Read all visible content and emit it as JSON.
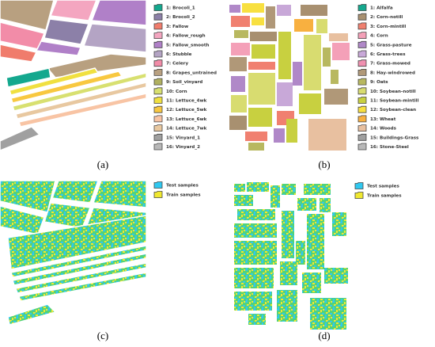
{
  "panels": [
    {
      "label": "(a)",
      "legend": [
        {
          "text": "1: Brocoli_1",
          "color": "#14a88e"
        },
        {
          "text": "2: Brocoli_2",
          "color": "#8c80a8"
        },
        {
          "text": "3: Fallow",
          "color": "#f07c6c"
        },
        {
          "text": "4: Fallow_rough",
          "color": "#f4a6c0"
        },
        {
          "text": "5: Fallow_smooth",
          "color": "#b080c8"
        },
        {
          "text": "6: Stubble",
          "color": "#b4a4c4"
        },
        {
          "text": "7: Celery",
          "color": "#f28ca8"
        },
        {
          "text": "8: Grapes_untrained",
          "color": "#b8a080"
        },
        {
          "text": "9: Soil_vinyard",
          "color": "#b0b060"
        },
        {
          "text": "10: Corn",
          "color": "#d8e070"
        },
        {
          "text": "11: Lettuce_4wk",
          "color": "#f0e040"
        },
        {
          "text": "12: Lettuce_5wk",
          "color": "#f8c840"
        },
        {
          "text": "13: Lettuce_6wk",
          "color": "#f8c4a4"
        },
        {
          "text": "14: Lettuce_7wk",
          "color": "#e8c8a0"
        },
        {
          "text": "15: Vinyard_1",
          "color": "#a0a0a0"
        },
        {
          "text": "16: Vinyard_2",
          "color": "#b8b8b8"
        }
      ]
    },
    {
      "label": "(b)",
      "legend": [
        {
          "text": "1: Alfalfa",
          "color": "#14a88e"
        },
        {
          "text": "2: Corn-notill",
          "color": "#a89070"
        },
        {
          "text": "3: Corn-mintill",
          "color": "#f08070"
        },
        {
          "text": "4: Corn",
          "color": "#f4a0b8"
        },
        {
          "text": "5: Grass-pasture",
          "color": "#b088c8"
        },
        {
          "text": "6: Grass-trees",
          "color": "#c8a8d8"
        },
        {
          "text": "7: Grass-mowed",
          "color": "#f090b0"
        },
        {
          "text": "8: Hay-windrowed",
          "color": "#b09878"
        },
        {
          "text": "9: Oats",
          "color": "#b8b860"
        },
        {
          "text": "10: Soybean-notill",
          "color": "#d8dc70"
        },
        {
          "text": "11: Soybean-mintill",
          "color": "#c8d040"
        },
        {
          "text": "12: Soybean-clean",
          "color": "#f8e040"
        },
        {
          "text": "13: Wheat",
          "color": "#f8b040"
        },
        {
          "text": "14: Woods",
          "color": "#e8c0a0"
        },
        {
          "text": "15: Buildings-Grass",
          "color": "#a0a0a0"
        },
        {
          "text": "16: Stone-Steel",
          "color": "#b8b8b8"
        }
      ]
    },
    {
      "label": "(c)",
      "legend": [
        {
          "text": "Test samples",
          "color": "#30c8f0"
        },
        {
          "text": "Train samples",
          "color": "#f0e830"
        }
      ]
    },
    {
      "label": "(d)",
      "legend": [
        {
          "text": "Test samples",
          "color": "#30c8f0"
        },
        {
          "text": "Train samples",
          "color": "#f0e830"
        }
      ]
    }
  ]
}
